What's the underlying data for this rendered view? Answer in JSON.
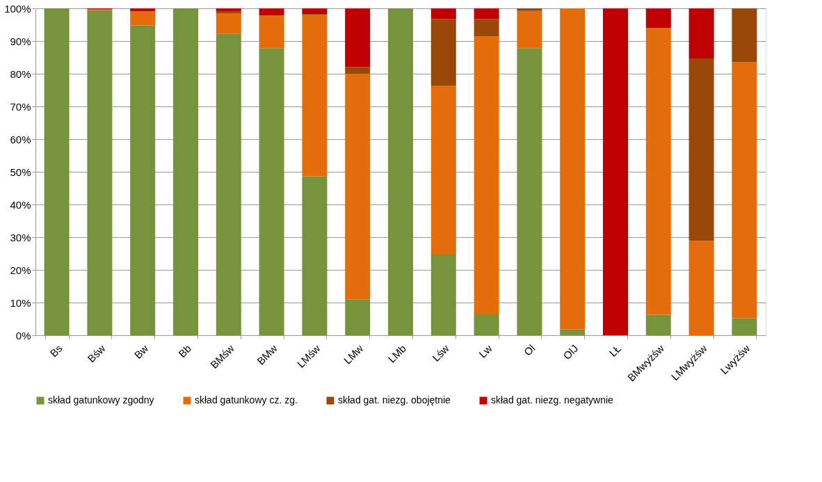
{
  "chart_data": {
    "type": "bar",
    "stacked": true,
    "categories": [
      "Bs",
      "Bśw",
      "Bw",
      "Bb",
      "BMśw",
      "BMw",
      "LMśw",
      "LMw",
      "LMb",
      "Lśw",
      "Lw",
      "Ol",
      "OlJ",
      "LŁ",
      "BMwyżśw",
      "LMwyżśw",
      "Lwyżśw"
    ],
    "series": [
      {
        "name": "skład gatunkowy zgodny",
        "color": "#77933c",
        "values": [
          100,
          99.4,
          94.8,
          100,
          92.3,
          87.8,
          48.6,
          11,
          100,
          24.7,
          6.4,
          87.8,
          1.8,
          0,
          6.3,
          0,
          5.2
        ]
      },
      {
        "name": "skład gatunkowy cz. zg.",
        "color": "#e46c0a",
        "values": [
          0,
          0.3,
          4.3,
          0,
          6.2,
          10,
          49.4,
          69,
          0,
          51.7,
          85.1,
          11.4,
          98.2,
          0,
          87.7,
          28.9,
          78.3
        ]
      },
      {
        "name": "skład gat. niezg. obojętnie",
        "color": "#984807",
        "values": [
          0,
          0,
          0,
          0,
          0.5,
          0,
          0.3,
          2,
          0,
          20.3,
          5.2,
          0.8,
          0,
          0,
          0,
          55.8,
          16.5
        ]
      },
      {
        "name": "skład gat. niezg. negatywnie",
        "color": "#c00000",
        "values": [
          0,
          0.3,
          0.9,
          0,
          1,
          2.2,
          1.7,
          18,
          0,
          3.3,
          3.3,
          0,
          0,
          100,
          6,
          15.3,
          0
        ]
      }
    ],
    "ylim": [
      0,
      100
    ],
    "yticks": [
      {
        "value": 0,
        "label": "0%"
      },
      {
        "value": 10,
        "label": "10%"
      },
      {
        "value": 20,
        "label": "20%"
      },
      {
        "value": 30,
        "label": "30%"
      },
      {
        "value": 40,
        "label": "40%"
      },
      {
        "value": 50,
        "label": "50%"
      },
      {
        "value": 60,
        "label": "60%"
      },
      {
        "value": 70,
        "label": "70%"
      },
      {
        "value": 80,
        "label": "80%"
      },
      {
        "value": 90,
        "label": "90%"
      },
      {
        "value": 100,
        "label": "100%"
      }
    ],
    "grid": "y",
    "legend": "bottom"
  }
}
